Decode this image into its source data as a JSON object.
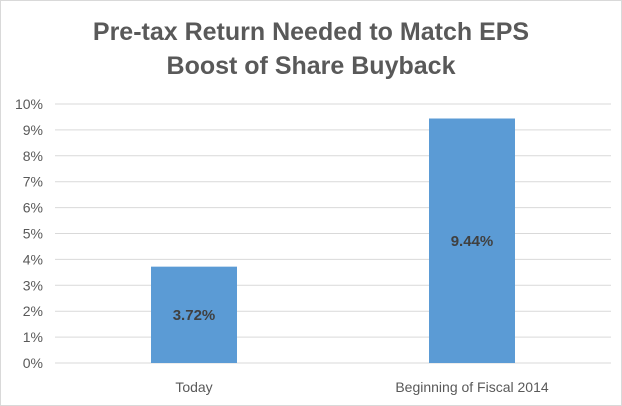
{
  "chart_data": {
    "type": "bar",
    "title_lines": [
      "Pre-tax Return Needed to Match EPS",
      "Boost of Share Buyback"
    ],
    "categories": [
      "Today",
      "Beginning of Fiscal 2014"
    ],
    "values": [
      3.72,
      9.44
    ],
    "data_labels": [
      "3.72%",
      "9.44%"
    ],
    "y_ticks": [
      "0%",
      "1%",
      "2%",
      "3%",
      "4%",
      "5%",
      "6%",
      "7%",
      "8%",
      "9%",
      "10%"
    ],
    "ylim": [
      0,
      10
    ],
    "unit": "%",
    "grid": true,
    "legend": "none",
    "bar_color": "#5b9bd5",
    "grid_color": "#d9d9d9",
    "text_color": "#595959"
  }
}
